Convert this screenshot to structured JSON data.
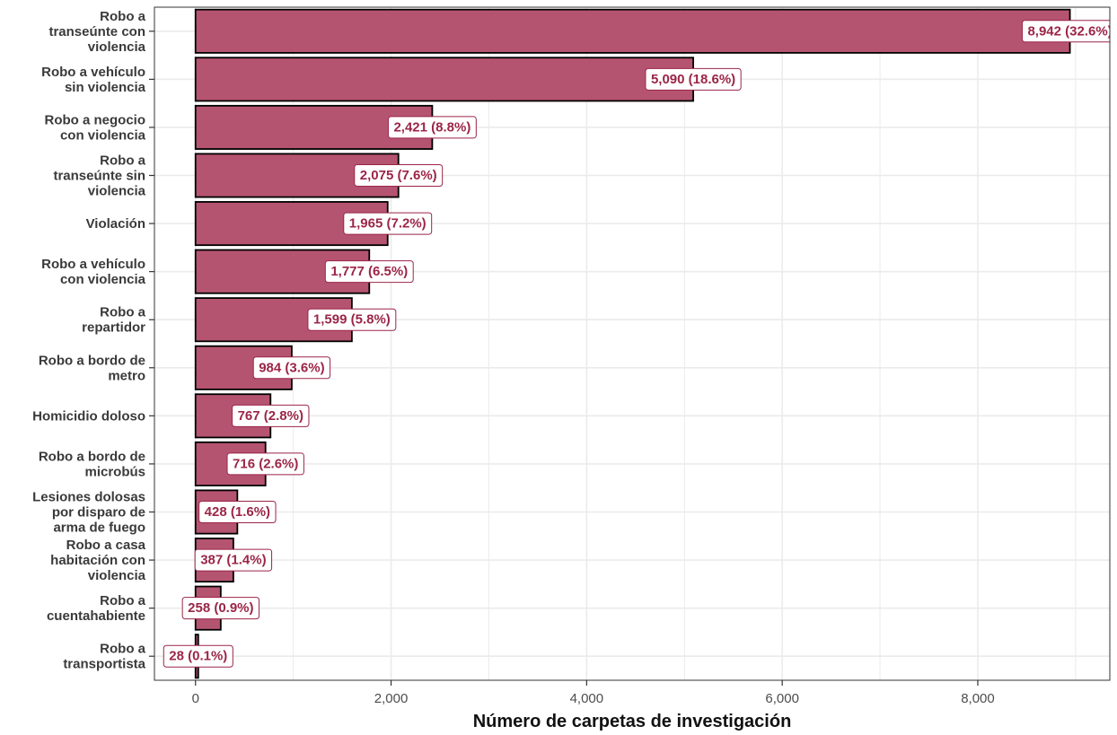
{
  "colors": {
    "bar": "#b55470",
    "bar_border": "#000000",
    "label_text": "#9b2548",
    "label_border": "#9b2548",
    "grid": "#ebebeb",
    "panel_border": "#333333"
  },
  "chart_data": {
    "type": "bar",
    "orientation": "horizontal",
    "title": "",
    "xlabel": "Número de carpetas de investigación",
    "ylabel": "",
    "xlim": [
      -420,
      9350
    ],
    "grid": true,
    "xticks": [
      0,
      2000,
      4000,
      6000,
      8000
    ],
    "xtick_labels": [
      "0",
      "2,000",
      "4,000",
      "6,000",
      "8,000"
    ],
    "categories": [
      [
        "Robo a",
        "transeúnte con",
        "violencia"
      ],
      [
        "Robo a vehículo",
        "sin violencia"
      ],
      [
        "Robo a negocio",
        "con violencia"
      ],
      [
        "Robo a",
        "transeúnte sin",
        "violencia"
      ],
      [
        "Violación"
      ],
      [
        "Robo a vehículo",
        "con violencia"
      ],
      [
        "Robo a",
        "repartidor"
      ],
      [
        "Robo a bordo de",
        "metro"
      ],
      [
        "Homicidio doloso"
      ],
      [
        "Robo a bordo de",
        "microbús"
      ],
      [
        "Lesiones dolosas",
        "por disparo de",
        "arma de fuego"
      ],
      [
        "Robo a casa",
        "habitación con",
        "violencia"
      ],
      [
        "Robo a",
        "cuentahabiente"
      ],
      [
        "Robo a",
        "transportista"
      ]
    ],
    "values": [
      8942,
      5090,
      2421,
      2075,
      1965,
      1777,
      1599,
      984,
      767,
      716,
      428,
      387,
      258,
      28
    ],
    "data_labels": [
      "8,942 (32.6%)",
      "5,090 (18.6%)",
      "2,421 (8.8%)",
      "2,075 (7.6%)",
      "1,965 (7.2%)",
      "1,777 (6.5%)",
      "1,599 (5.8%)",
      "984 (3.6%)",
      "767 (2.8%)",
      "716 (2.6%)",
      "428 (1.6%)",
      "387 (1.4%)",
      "258 (0.9%)",
      "28 (0.1%)"
    ]
  }
}
